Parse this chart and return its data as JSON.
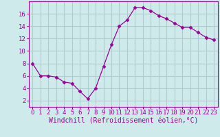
{
  "x": [
    0,
    1,
    2,
    3,
    4,
    5,
    6,
    7,
    8,
    9,
    10,
    11,
    12,
    13,
    14,
    15,
    16,
    17,
    18,
    19,
    20,
    21,
    22,
    23
  ],
  "y": [
    8,
    6,
    6,
    5.8,
    5,
    4.8,
    3.5,
    2.3,
    4,
    7.5,
    11,
    14,
    15,
    17,
    17,
    16.5,
    15.7,
    15.2,
    14.5,
    13.8,
    13.8,
    13,
    12.2,
    11.8
  ],
  "line_color": "#990099",
  "marker": "D",
  "marker_size": 2.5,
  "background_color": "#ceeaea",
  "grid_color": "#aecece",
  "xlabel": "Windchill (Refroidissement éolien,°C)",
  "xlabel_fontsize": 7,
  "tick_fontsize": 6.5,
  "ylim": [
    1,
    18
  ],
  "yticks": [
    2,
    4,
    6,
    8,
    10,
    12,
    14,
    16
  ],
  "xlim": [
    -0.5,
    23.5
  ],
  "xticks": [
    0,
    1,
    2,
    3,
    4,
    5,
    6,
    7,
    8,
    9,
    10,
    11,
    12,
    13,
    14,
    15,
    16,
    17,
    18,
    19,
    20,
    21,
    22,
    23
  ]
}
